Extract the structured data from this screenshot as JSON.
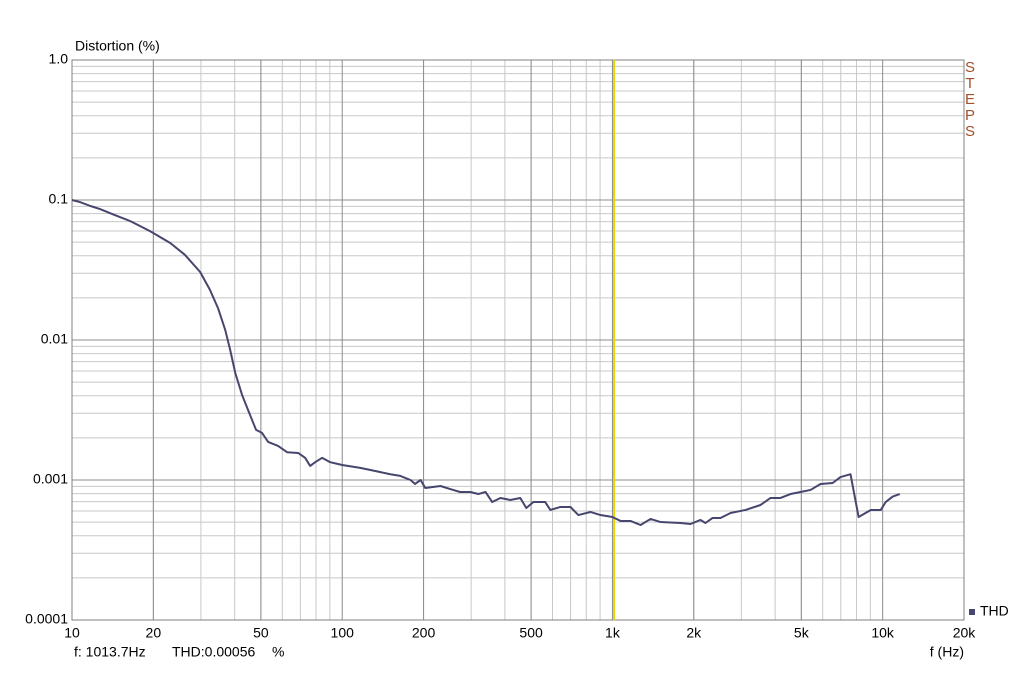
{
  "chart_data": {
    "type": "line",
    "y_label": "Distortion (%)",
    "x_label": "f (Hz)",
    "side_label": "STEPS",
    "readout": {
      "frequency": "f: 1013.7Hz",
      "value": "THD:0.00056",
      "unit": "%"
    },
    "cursor_x": 1013.7,
    "cursor_color": "#e8d800",
    "x_scale": "log",
    "y_scale": "log",
    "grid": true,
    "legend": "bottom-right",
    "xlim": [
      10,
      20000
    ],
    "ylim": [
      0.0001,
      1
    ],
    "xticks": [
      10,
      20,
      50,
      100,
      200,
      500,
      {
        "value": 1000,
        "label": "1k"
      },
      {
        "value": 2000,
        "label": "2k"
      },
      {
        "value": 5000,
        "label": "5k"
      },
      {
        "value": 10000,
        "label": "10k"
      },
      {
        "value": 20000,
        "label": "20k"
      }
    ],
    "yticks": [
      0.0001,
      0.001,
      0.01,
      0.1,
      {
        "value": 1,
        "label": "1.0"
      }
    ],
    "x": [
      10,
      10.7,
      11.7,
      12.7,
      14.4,
      16.4,
      19.4,
      23.1,
      26.2,
      29.8,
      32.4,
      34.7,
      36.9,
      38.5,
      40.2,
      42.6,
      45.6,
      48.0,
      50.5,
      53.2,
      57.9,
      62.5,
      68.7,
      72.9,
      76.1,
      79.4,
      84.3,
      90.3,
      100,
      116.6,
      132.5,
      150.7,
      164,
      179,
      186,
      195,
      203,
      231,
      251,
      273,
      298,
      319,
      339,
      359,
      385,
      419,
      456,
      480,
      510,
      564,
      589,
      642,
      699,
      748,
      829,
      903,
      1000,
      1071,
      1167,
      1271,
      1384,
      1507,
      1787,
      1945,
      2118,
      2210,
      2344,
      2512,
      2735,
      3110,
      3532,
      3846,
      4188,
      4560,
      4966,
      5408,
      5888,
      6529,
      6982,
      7603,
      8147,
      9036,
      9838,
      10264,
      10894,
      11563
    ],
    "series": [
      {
        "name": "THD",
        "color": "#46466e",
        "values": [
          0.1,
          0.0967,
          0.0906,
          0.0862,
          0.0781,
          0.0708,
          0.0601,
          0.0493,
          0.0405,
          0.0306,
          0.0228,
          0.0169,
          0.0118,
          0.00848,
          0.00581,
          0.00405,
          0.00291,
          0.00228,
          0.00217,
          0.00187,
          0.00175,
          0.00158,
          0.00156,
          0.00144,
          0.00126,
          0.00134,
          0.00144,
          0.00134,
          0.00128,
          0.00122,
          0.00116,
          0.0011,
          0.00107,
          0.001,
          0.000937,
          0.001,
          0.000877,
          0.000906,
          0.000862,
          0.000821,
          0.000821,
          0.000794,
          0.000821,
          0.000696,
          0.000744,
          0.00072,
          0.000744,
          0.000631,
          0.000696,
          0.000696,
          0.000611,
          0.000642,
          0.000642,
          0.000562,
          0.000591,
          0.000562,
          0.000544,
          0.00051,
          0.00051,
          0.000477,
          0.000527,
          0.000501,
          0.000493,
          0.000485,
          0.000518,
          0.000493,
          0.000535,
          0.000535,
          0.000581,
          0.000611,
          0.000663,
          0.000744,
          0.000744,
          0.000794,
          0.000821,
          0.000849,
          0.000937,
          0.000952,
          0.00105,
          0.0011,
          0.000544,
          0.000611,
          0.000611,
          0.000696,
          0.000762,
          0.000794
        ]
      }
    ]
  }
}
